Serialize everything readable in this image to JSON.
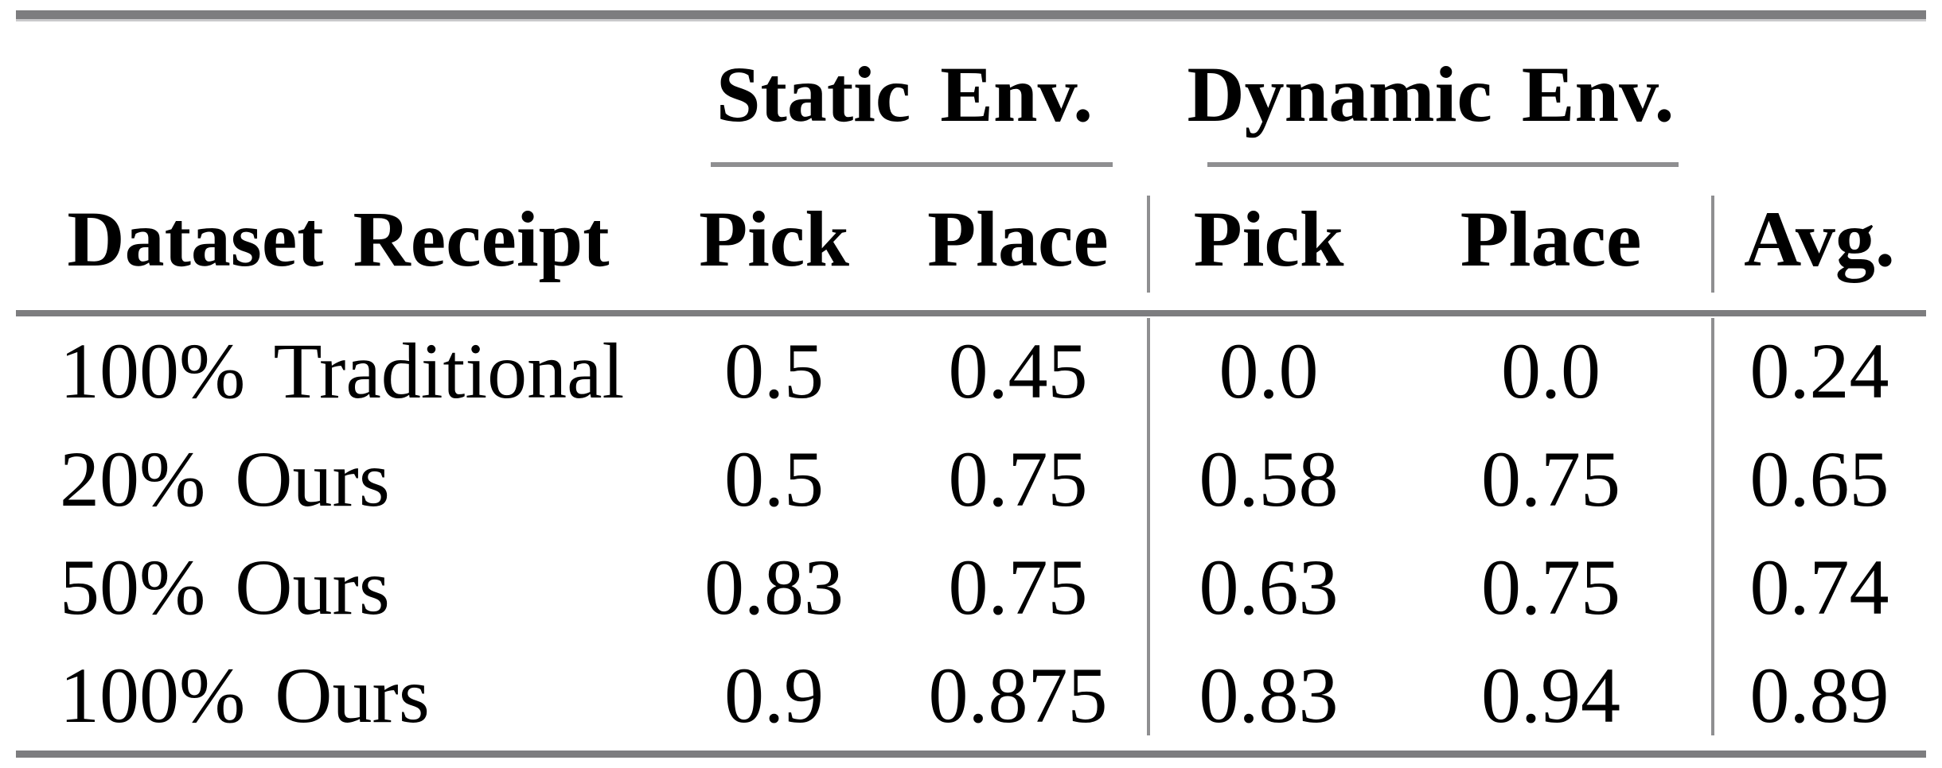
{
  "page": {
    "background": "#ffffff",
    "colors": {
      "text": "#000000",
      "thick_rule": "#7d7d7f",
      "thin_rule": "#8f8f91",
      "top_rule_light_edge": "#c9c9cb"
    }
  },
  "table": {
    "group_headers": [
      {
        "label": "Static Env."
      },
      {
        "label": "Dynamic Env."
      }
    ],
    "columns": [
      "Dataset Receipt",
      "Pick",
      "Place",
      "Pick",
      "Place",
      "Avg."
    ],
    "rows": [
      {
        "label": "100% Traditional",
        "values": [
          "0.5",
          "0.45",
          "0.0",
          "0.0",
          "0.24"
        ]
      },
      {
        "label": "20% Ours",
        "values": [
          "0.5",
          "0.75",
          "0.58",
          "0.75",
          "0.65"
        ]
      },
      {
        "label": "50% Ours",
        "values": [
          "0.83",
          "0.75",
          "0.63",
          "0.75",
          "0.74"
        ]
      },
      {
        "label": "100% Ours",
        "values": [
          "0.9",
          "0.875",
          "0.83",
          "0.94",
          "0.89"
        ]
      }
    ]
  },
  "chart_data": {
    "type": "table",
    "column_groups": [
      {
        "label": "Static Env.",
        "columns": [
          "Pick",
          "Place"
        ]
      },
      {
        "label": "Dynamic Env.",
        "columns": [
          "Pick",
          "Place"
        ]
      }
    ],
    "columns": [
      "Dataset Receipt",
      "Static Env. Pick",
      "Static Env. Place",
      "Dynamic Env. Pick",
      "Dynamic Env. Place",
      "Avg."
    ],
    "rows": [
      [
        "100% Traditional",
        0.5,
        0.45,
        0.0,
        0.0,
        0.24
      ],
      [
        "20% Ours",
        0.5,
        0.75,
        0.58,
        0.75,
        0.65
      ],
      [
        "50% Ours",
        0.83,
        0.75,
        0.63,
        0.75,
        0.74
      ],
      [
        "100% Ours",
        0.9,
        0.875,
        0.83,
        0.94,
        0.89
      ]
    ]
  }
}
